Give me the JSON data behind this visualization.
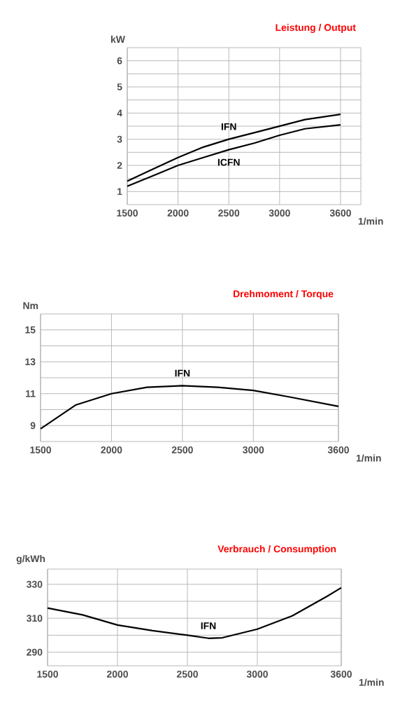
{
  "chart_data": [
    {
      "type": "line",
      "title": "Leistung / Output",
      "xlabel": "1/min",
      "ylabel": "kW",
      "xlim": [
        1500,
        3800
      ],
      "xticks": [
        1500,
        2000,
        2500,
        3000,
        3600
      ],
      "ylim": [
        0.5,
        6.5
      ],
      "yticks": [
        1,
        2,
        3,
        4,
        5,
        6
      ],
      "grid": true,
      "x": [
        1500,
        1750,
        2000,
        2250,
        2500,
        2750,
        3000,
        3250,
        3600
      ],
      "series": [
        {
          "name": "IFN",
          "color": "#000000",
          "values": [
            1.4,
            1.85,
            2.3,
            2.7,
            3.0,
            3.25,
            3.5,
            3.75,
            3.95
          ]
        },
        {
          "name": "ICFN",
          "color": "#000000",
          "values": [
            1.2,
            1.6,
            2.0,
            2.3,
            2.6,
            2.85,
            3.15,
            3.4,
            3.55
          ]
        }
      ]
    },
    {
      "type": "line",
      "title": "Drehmoment / Torque",
      "xlabel": "1/min",
      "ylabel": "Nm",
      "xlim": [
        1500,
        3600
      ],
      "xticks": [
        1500,
        2000,
        2500,
        3000,
        3600
      ],
      "ylim": [
        8,
        16
      ],
      "yticks": [
        9,
        11,
        13,
        15
      ],
      "grid": true,
      "x": [
        1500,
        1750,
        2000,
        2250,
        2500,
        2750,
        3000,
        3250,
        3600
      ],
      "series": [
        {
          "name": "IFN",
          "color": "#000000",
          "values": [
            8.8,
            10.3,
            11.0,
            11.4,
            11.5,
            11.4,
            11.2,
            10.8,
            10.2
          ]
        }
      ]
    },
    {
      "type": "line",
      "title": "Verbrauch / Consumption",
      "xlabel": "1/min",
      "ylabel": "g/kWh",
      "xlim": [
        1500,
        3600
      ],
      "xticks": [
        1500,
        2000,
        2500,
        3000,
        3600
      ],
      "ylim": [
        282,
        339
      ],
      "yticks": [
        290,
        310,
        330
      ],
      "grid": true,
      "x": [
        1500,
        1750,
        2000,
        2250,
        2500,
        2650,
        2750,
        3000,
        3250,
        3500,
        3600
      ],
      "series": [
        {
          "name": "IFN",
          "color": "#000000",
          "values": [
            316,
            312,
            306,
            302.7,
            300,
            298.2,
            298.5,
            303.6,
            311.4,
            323,
            328
          ]
        }
      ]
    }
  ]
}
